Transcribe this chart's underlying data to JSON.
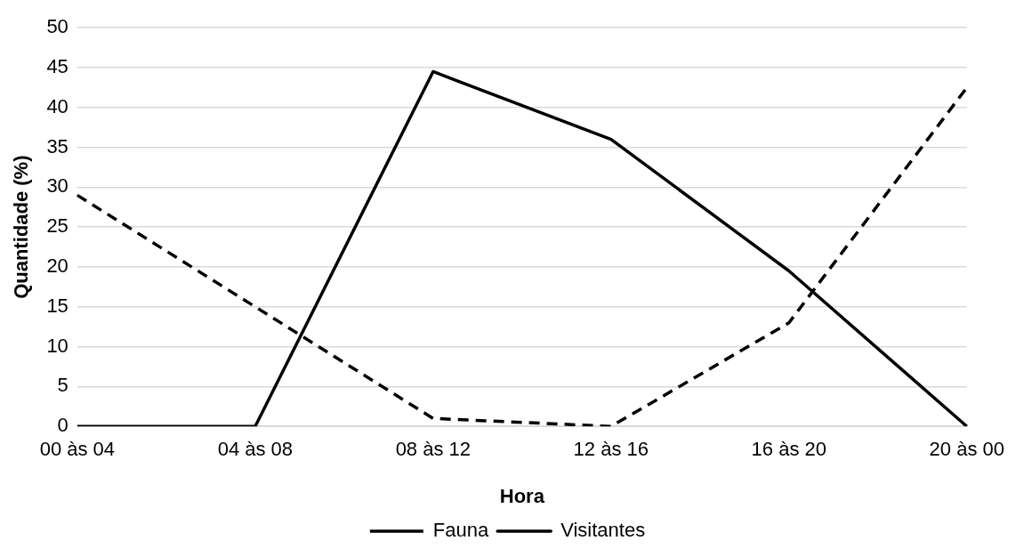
{
  "chart_data": {
    "type": "line",
    "xlabel": "Hora",
    "ylabel": "Quantidade (%)",
    "categories": [
      "00 às 04",
      "04 às 08",
      "08 às 12",
      "12 às 16",
      "16 às 20",
      "20 às 00"
    ],
    "series": [
      {
        "name": "Fauna",
        "color": "#000000",
        "line_style": "dashed",
        "values": [
          29,
          15,
          1,
          0,
          13,
          42.5
        ]
      },
      {
        "name": "Visitantes",
        "color": "#000000",
        "line_style": "solid",
        "values": [
          0,
          0,
          44.5,
          36,
          19.5,
          0
        ]
      }
    ],
    "ylim": [
      0,
      50
    ],
    "yticks": [
      0,
      5,
      10,
      15,
      20,
      25,
      30,
      35,
      40,
      45,
      50
    ],
    "grid": "y",
    "legend": "bottom",
    "marker": "none"
  }
}
